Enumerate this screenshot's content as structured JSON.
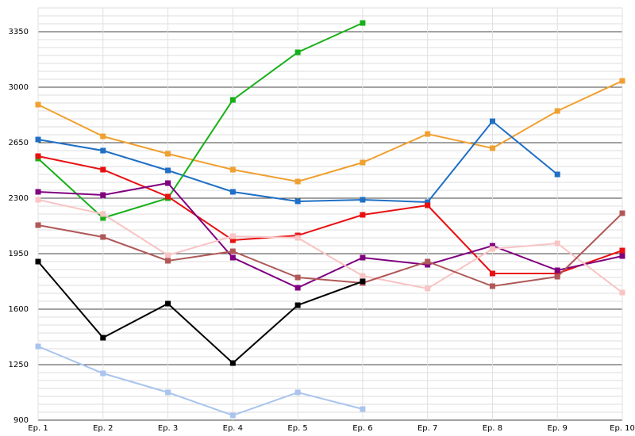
{
  "chart_data": {
    "type": "line",
    "categories": [
      "Ep. 1",
      "Ep. 2",
      "Ep. 3",
      "Ep. 4",
      "Ep. 5",
      "Ep. 6",
      "Ep. 7",
      "Ep. 8",
      "Ep. 9",
      "Ep. 10"
    ],
    "ylim": [
      900,
      3500
    ],
    "yticks": [
      900,
      1250,
      1600,
      1950,
      2300,
      2650,
      3000,
      3350
    ],
    "grid": true,
    "minor_grid_step": 50,
    "series": [
      {
        "color": "#f0a030",
        "values": [
          2890,
          2690,
          2580,
          2480,
          2405,
          2525,
          2705,
          2615,
          2850,
          3040
        ]
      },
      {
        "color": "#1f6fc5",
        "values": [
          2670,
          2600,
          2475,
          2340,
          2280,
          2290,
          2275,
          2785,
          2450,
          null
        ]
      },
      {
        "color": "#18b018",
        "values": [
          2550,
          2175,
          2300,
          2920,
          3220,
          3405,
          null,
          null,
          null,
          null
        ]
      },
      {
        "color": "#e81010",
        "values": [
          2565,
          2480,
          2310,
          2035,
          2065,
          2195,
          2255,
          1825,
          1825,
          1970
        ]
      },
      {
        "color": "#800080",
        "values": [
          2340,
          2320,
          2395,
          1925,
          1735,
          1925,
          1880,
          2000,
          1845,
          1935
        ]
      },
      {
        "color": "#f8c4c4",
        "values": [
          2290,
          2200,
          1940,
          2060,
          2050,
          1810,
          1730,
          1980,
          2015,
          1705
        ]
      },
      {
        "color": "#b05858",
        "values": [
          2130,
          2055,
          1905,
          1965,
          1800,
          1765,
          1900,
          1745,
          1805,
          2205
        ]
      },
      {
        "color": "#000000",
        "values": [
          1900,
          1420,
          1635,
          1260,
          1625,
          1775,
          null,
          null,
          null,
          null
        ]
      },
      {
        "color": "#aac4ee",
        "values": [
          1365,
          1195,
          1075,
          930,
          1075,
          970,
          null,
          null,
          null,
          null
        ]
      }
    ]
  }
}
